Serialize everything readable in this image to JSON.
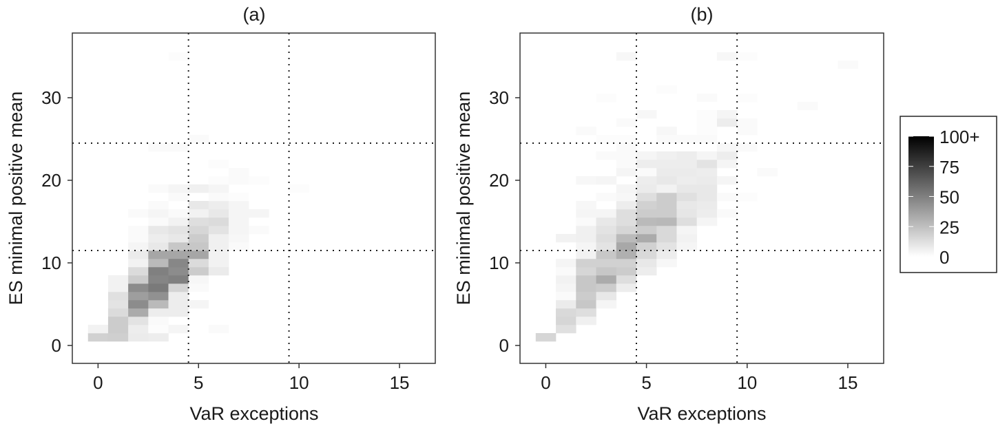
{
  "figure": {
    "legend": {
      "title": "",
      "ticks": [
        "0",
        "25",
        "50",
        "75",
        "100+"
      ],
      "tick_values": [
        0,
        25,
        50,
        75,
        100
      ],
      "low_color": "#ffffff",
      "high_color": "#000000",
      "placement": "right"
    },
    "reference_lines": {
      "x": [
        4.5,
        9.5
      ],
      "y": [
        11.5,
        24.5
      ],
      "style": "dotted",
      "color": "#1a1a1a"
    }
  },
  "chart_data": [
    {
      "type": "heatmap",
      "title": "(a)",
      "xlabel": "VaR exceptions",
      "ylabel": "ES minimal positive mean",
      "xlim": [
        -1.28,
        16.78
      ],
      "ylim": [
        -2.17,
        37.83
      ],
      "xticks": [
        0,
        5,
        10,
        15
      ],
      "yticks": [
        0,
        10,
        20,
        30
      ],
      "grid": false,
      "bin_width": 1,
      "bin_height": 1,
      "value_range": [
        0,
        100
      ],
      "cells": [
        [
          0,
          1,
          18
        ],
        [
          1,
          1,
          19
        ],
        [
          2,
          1,
          8
        ],
        [
          3,
          1,
          7
        ],
        [
          0,
          2,
          5
        ],
        [
          1,
          2,
          20
        ],
        [
          2,
          2,
          7
        ],
        [
          3,
          2,
          1
        ],
        [
          4,
          2,
          4
        ],
        [
          6,
          2,
          2
        ],
        [
          1,
          3,
          20
        ],
        [
          2,
          3,
          11
        ],
        [
          3,
          3,
          2
        ],
        [
          1,
          4,
          14
        ],
        [
          2,
          4,
          33
        ],
        [
          3,
          4,
          7
        ],
        [
          4,
          4,
          7
        ],
        [
          1,
          5,
          11
        ],
        [
          2,
          5,
          45
        ],
        [
          3,
          5,
          27
        ],
        [
          4,
          5,
          7
        ],
        [
          5,
          5,
          4
        ],
        [
          1,
          6,
          12
        ],
        [
          2,
          6,
          38
        ],
        [
          3,
          6,
          43
        ],
        [
          4,
          6,
          7
        ],
        [
          1,
          7,
          5
        ],
        [
          2,
          7,
          45
        ],
        [
          3,
          7,
          52
        ],
        [
          4,
          7,
          17
        ],
        [
          5,
          7,
          2
        ],
        [
          1,
          8,
          5
        ],
        [
          2,
          8,
          20
        ],
        [
          3,
          8,
          48
        ],
        [
          4,
          8,
          50
        ],
        [
          5,
          8,
          3
        ],
        [
          2,
          9,
          14
        ],
        [
          3,
          9,
          50
        ],
        [
          4,
          9,
          45
        ],
        [
          5,
          9,
          20
        ],
        [
          6,
          9,
          8
        ],
        [
          2,
          10,
          5
        ],
        [
          3,
          10,
          27
        ],
        [
          4,
          10,
          47
        ],
        [
          5,
          10,
          14
        ],
        [
          6,
          10,
          5
        ],
        [
          2,
          11,
          8
        ],
        [
          3,
          11,
          35
        ],
        [
          4,
          11,
          35
        ],
        [
          5,
          11,
          35
        ],
        [
          6,
          11,
          5
        ],
        [
          2,
          12,
          4
        ],
        [
          3,
          12,
          9
        ],
        [
          4,
          12,
          22
        ],
        [
          5,
          12,
          22
        ],
        [
          6,
          12,
          6
        ],
        [
          7,
          12,
          2
        ],
        [
          2,
          13,
          2
        ],
        [
          3,
          13,
          7
        ],
        [
          4,
          13,
          9
        ],
        [
          5,
          13,
          20
        ],
        [
          6,
          13,
          6
        ],
        [
          7,
          13,
          3
        ],
        [
          2,
          14,
          2
        ],
        [
          3,
          14,
          9
        ],
        [
          4,
          14,
          11
        ],
        [
          5,
          14,
          16
        ],
        [
          6,
          14,
          11
        ],
        [
          7,
          14,
          4
        ],
        [
          8,
          14,
          2
        ],
        [
          3,
          15,
          2
        ],
        [
          4,
          15,
          5
        ],
        [
          5,
          15,
          13
        ],
        [
          6,
          15,
          14
        ],
        [
          7,
          15,
          4
        ],
        [
          2,
          16,
          2
        ],
        [
          3,
          16,
          4
        ],
        [
          4,
          16,
          2
        ],
        [
          5,
          16,
          5
        ],
        [
          6,
          16,
          9
        ],
        [
          7,
          16,
          4
        ],
        [
          8,
          16,
          4
        ],
        [
          3,
          17,
          2
        ],
        [
          5,
          17,
          9
        ],
        [
          6,
          17,
          7
        ],
        [
          7,
          17,
          4
        ],
        [
          4,
          18,
          2
        ],
        [
          6,
          18,
          2
        ],
        [
          7,
          18,
          1
        ],
        [
          3,
          19,
          2
        ],
        [
          4,
          19,
          4
        ],
        [
          5,
          19,
          6
        ],
        [
          6,
          19,
          4
        ],
        [
          10,
          19,
          1
        ],
        [
          6,
          20,
          1
        ],
        [
          7,
          20,
          2
        ],
        [
          8,
          20,
          1
        ],
        [
          7,
          21,
          2
        ],
        [
          6,
          22,
          1
        ],
        [
          3,
          24,
          2
        ],
        [
          4,
          24,
          2
        ],
        [
          5,
          25,
          2
        ],
        [
          4,
          35,
          1
        ]
      ]
    },
    {
      "type": "heatmap",
      "title": "(b)",
      "xlabel": "VaR exceptions",
      "ylabel": "ES minimal positive mean",
      "xlim": [
        -1.28,
        16.78
      ],
      "ylim": [
        -2.17,
        37.83
      ],
      "xticks": [
        0,
        5,
        10,
        15
      ],
      "yticks": [
        0,
        10,
        20,
        30
      ],
      "grid": false,
      "bin_width": 1,
      "bin_height": 1,
      "value_range": [
        0,
        100
      ],
      "cells": [
        [
          0,
          1,
          16
        ],
        [
          1,
          2,
          12
        ],
        [
          1,
          3,
          16
        ],
        [
          2,
          3,
          6
        ],
        [
          1,
          4,
          15
        ],
        [
          2,
          4,
          13
        ],
        [
          1,
          5,
          8
        ],
        [
          2,
          5,
          22
        ],
        [
          3,
          5,
          4
        ],
        [
          1,
          6,
          2
        ],
        [
          2,
          6,
          20
        ],
        [
          3,
          6,
          9
        ],
        [
          1,
          7,
          4
        ],
        [
          2,
          7,
          22
        ],
        [
          3,
          7,
          20
        ],
        [
          4,
          7,
          7
        ],
        [
          1,
          8,
          5
        ],
        [
          2,
          8,
          22
        ],
        [
          3,
          8,
          33
        ],
        [
          4,
          8,
          13
        ],
        [
          1,
          9,
          2
        ],
        [
          2,
          9,
          16
        ],
        [
          3,
          9,
          22
        ],
        [
          4,
          9,
          20
        ],
        [
          5,
          9,
          7
        ],
        [
          1,
          10,
          4
        ],
        [
          2,
          10,
          18
        ],
        [
          3,
          10,
          18
        ],
        [
          4,
          10,
          18
        ],
        [
          5,
          10,
          9
        ],
        [
          6,
          10,
          3
        ],
        [
          2,
          11,
          5
        ],
        [
          3,
          11,
          22
        ],
        [
          4,
          11,
          31
        ],
        [
          5,
          11,
          15
        ],
        [
          6,
          11,
          7
        ],
        [
          2,
          12,
          4
        ],
        [
          3,
          12,
          11
        ],
        [
          4,
          12,
          34
        ],
        [
          5,
          12,
          18
        ],
        [
          6,
          12,
          11
        ],
        [
          7,
          12,
          4
        ],
        [
          1,
          13,
          5
        ],
        [
          2,
          13,
          6
        ],
        [
          3,
          13,
          13
        ],
        [
          4,
          13,
          27
        ],
        [
          5,
          13,
          33
        ],
        [
          6,
          13,
          15
        ],
        [
          7,
          13,
          5
        ],
        [
          2,
          14,
          6
        ],
        [
          3,
          14,
          11
        ],
        [
          4,
          14,
          16
        ],
        [
          5,
          14,
          20
        ],
        [
          6,
          14,
          15
        ],
        [
          7,
          14,
          4
        ],
        [
          2,
          15,
          2
        ],
        [
          3,
          15,
          9
        ],
        [
          4,
          15,
          13
        ],
        [
          5,
          15,
          27
        ],
        [
          6,
          15,
          28
        ],
        [
          7,
          15,
          13
        ],
        [
          8,
          15,
          4
        ],
        [
          2,
          16,
          4
        ],
        [
          3,
          16,
          4
        ],
        [
          4,
          16,
          13
        ],
        [
          5,
          16,
          20
        ],
        [
          6,
          16,
          20
        ],
        [
          7,
          16,
          10
        ],
        [
          8,
          16,
          7
        ],
        [
          9,
          16,
          2
        ],
        [
          2,
          17,
          3
        ],
        [
          4,
          17,
          7
        ],
        [
          5,
          17,
          18
        ],
        [
          6,
          17,
          20
        ],
        [
          7,
          17,
          9
        ],
        [
          8,
          17,
          8
        ],
        [
          3,
          18,
          2
        ],
        [
          4,
          18,
          3
        ],
        [
          5,
          18,
          13
        ],
        [
          6,
          18,
          20
        ],
        [
          7,
          18,
          12
        ],
        [
          8,
          18,
          9
        ],
        [
          9,
          18,
          2
        ],
        [
          10,
          18,
          1
        ],
        [
          4,
          19,
          4
        ],
        [
          5,
          19,
          8
        ],
        [
          6,
          19,
          5
        ],
        [
          7,
          19,
          9
        ],
        [
          8,
          19,
          9
        ],
        [
          2,
          20,
          3
        ],
        [
          3,
          20,
          4
        ],
        [
          5,
          20,
          7
        ],
        [
          6,
          20,
          9
        ],
        [
          7,
          20,
          7
        ],
        [
          8,
          20,
          8
        ],
        [
          9,
          20,
          4
        ],
        [
          4,
          21,
          4
        ],
        [
          5,
          21,
          2
        ],
        [
          6,
          21,
          8
        ],
        [
          7,
          21,
          8
        ],
        [
          8,
          21,
          7
        ],
        [
          11,
          21,
          2
        ],
        [
          4,
          22,
          2
        ],
        [
          5,
          22,
          7
        ],
        [
          6,
          22,
          7
        ],
        [
          7,
          22,
          7
        ],
        [
          8,
          22,
          11
        ],
        [
          9,
          22,
          4
        ],
        [
          3,
          23,
          2
        ],
        [
          4,
          23,
          2
        ],
        [
          5,
          23,
          4
        ],
        [
          6,
          23,
          6
        ],
        [
          7,
          23,
          7
        ],
        [
          8,
          23,
          4
        ],
        [
          9,
          23,
          7
        ],
        [
          4,
          24,
          2
        ],
        [
          9,
          24,
          3
        ],
        [
          10,
          24,
          2
        ],
        [
          3,
          25,
          1
        ],
        [
          4,
          25,
          1
        ],
        [
          6,
          25,
          2
        ],
        [
          7,
          25,
          2
        ],
        [
          8,
          25,
          2
        ],
        [
          2,
          26,
          2
        ],
        [
          6,
          26,
          3
        ],
        [
          8,
          26,
          1
        ],
        [
          10,
          26,
          2
        ],
        [
          4,
          27,
          2
        ],
        [
          8,
          27,
          1
        ],
        [
          9,
          27,
          7
        ],
        [
          10,
          27,
          2
        ],
        [
          5,
          28,
          3
        ],
        [
          8,
          28,
          1
        ],
        [
          9,
          28,
          4
        ],
        [
          13,
          29,
          2
        ],
        [
          3,
          30,
          1
        ],
        [
          8,
          30,
          2
        ],
        [
          10,
          30,
          1
        ],
        [
          6,
          31,
          1
        ],
        [
          15,
          34,
          2
        ],
        [
          4,
          35,
          3
        ],
        [
          9,
          35,
          3
        ],
        [
          10,
          35,
          1
        ]
      ]
    }
  ]
}
